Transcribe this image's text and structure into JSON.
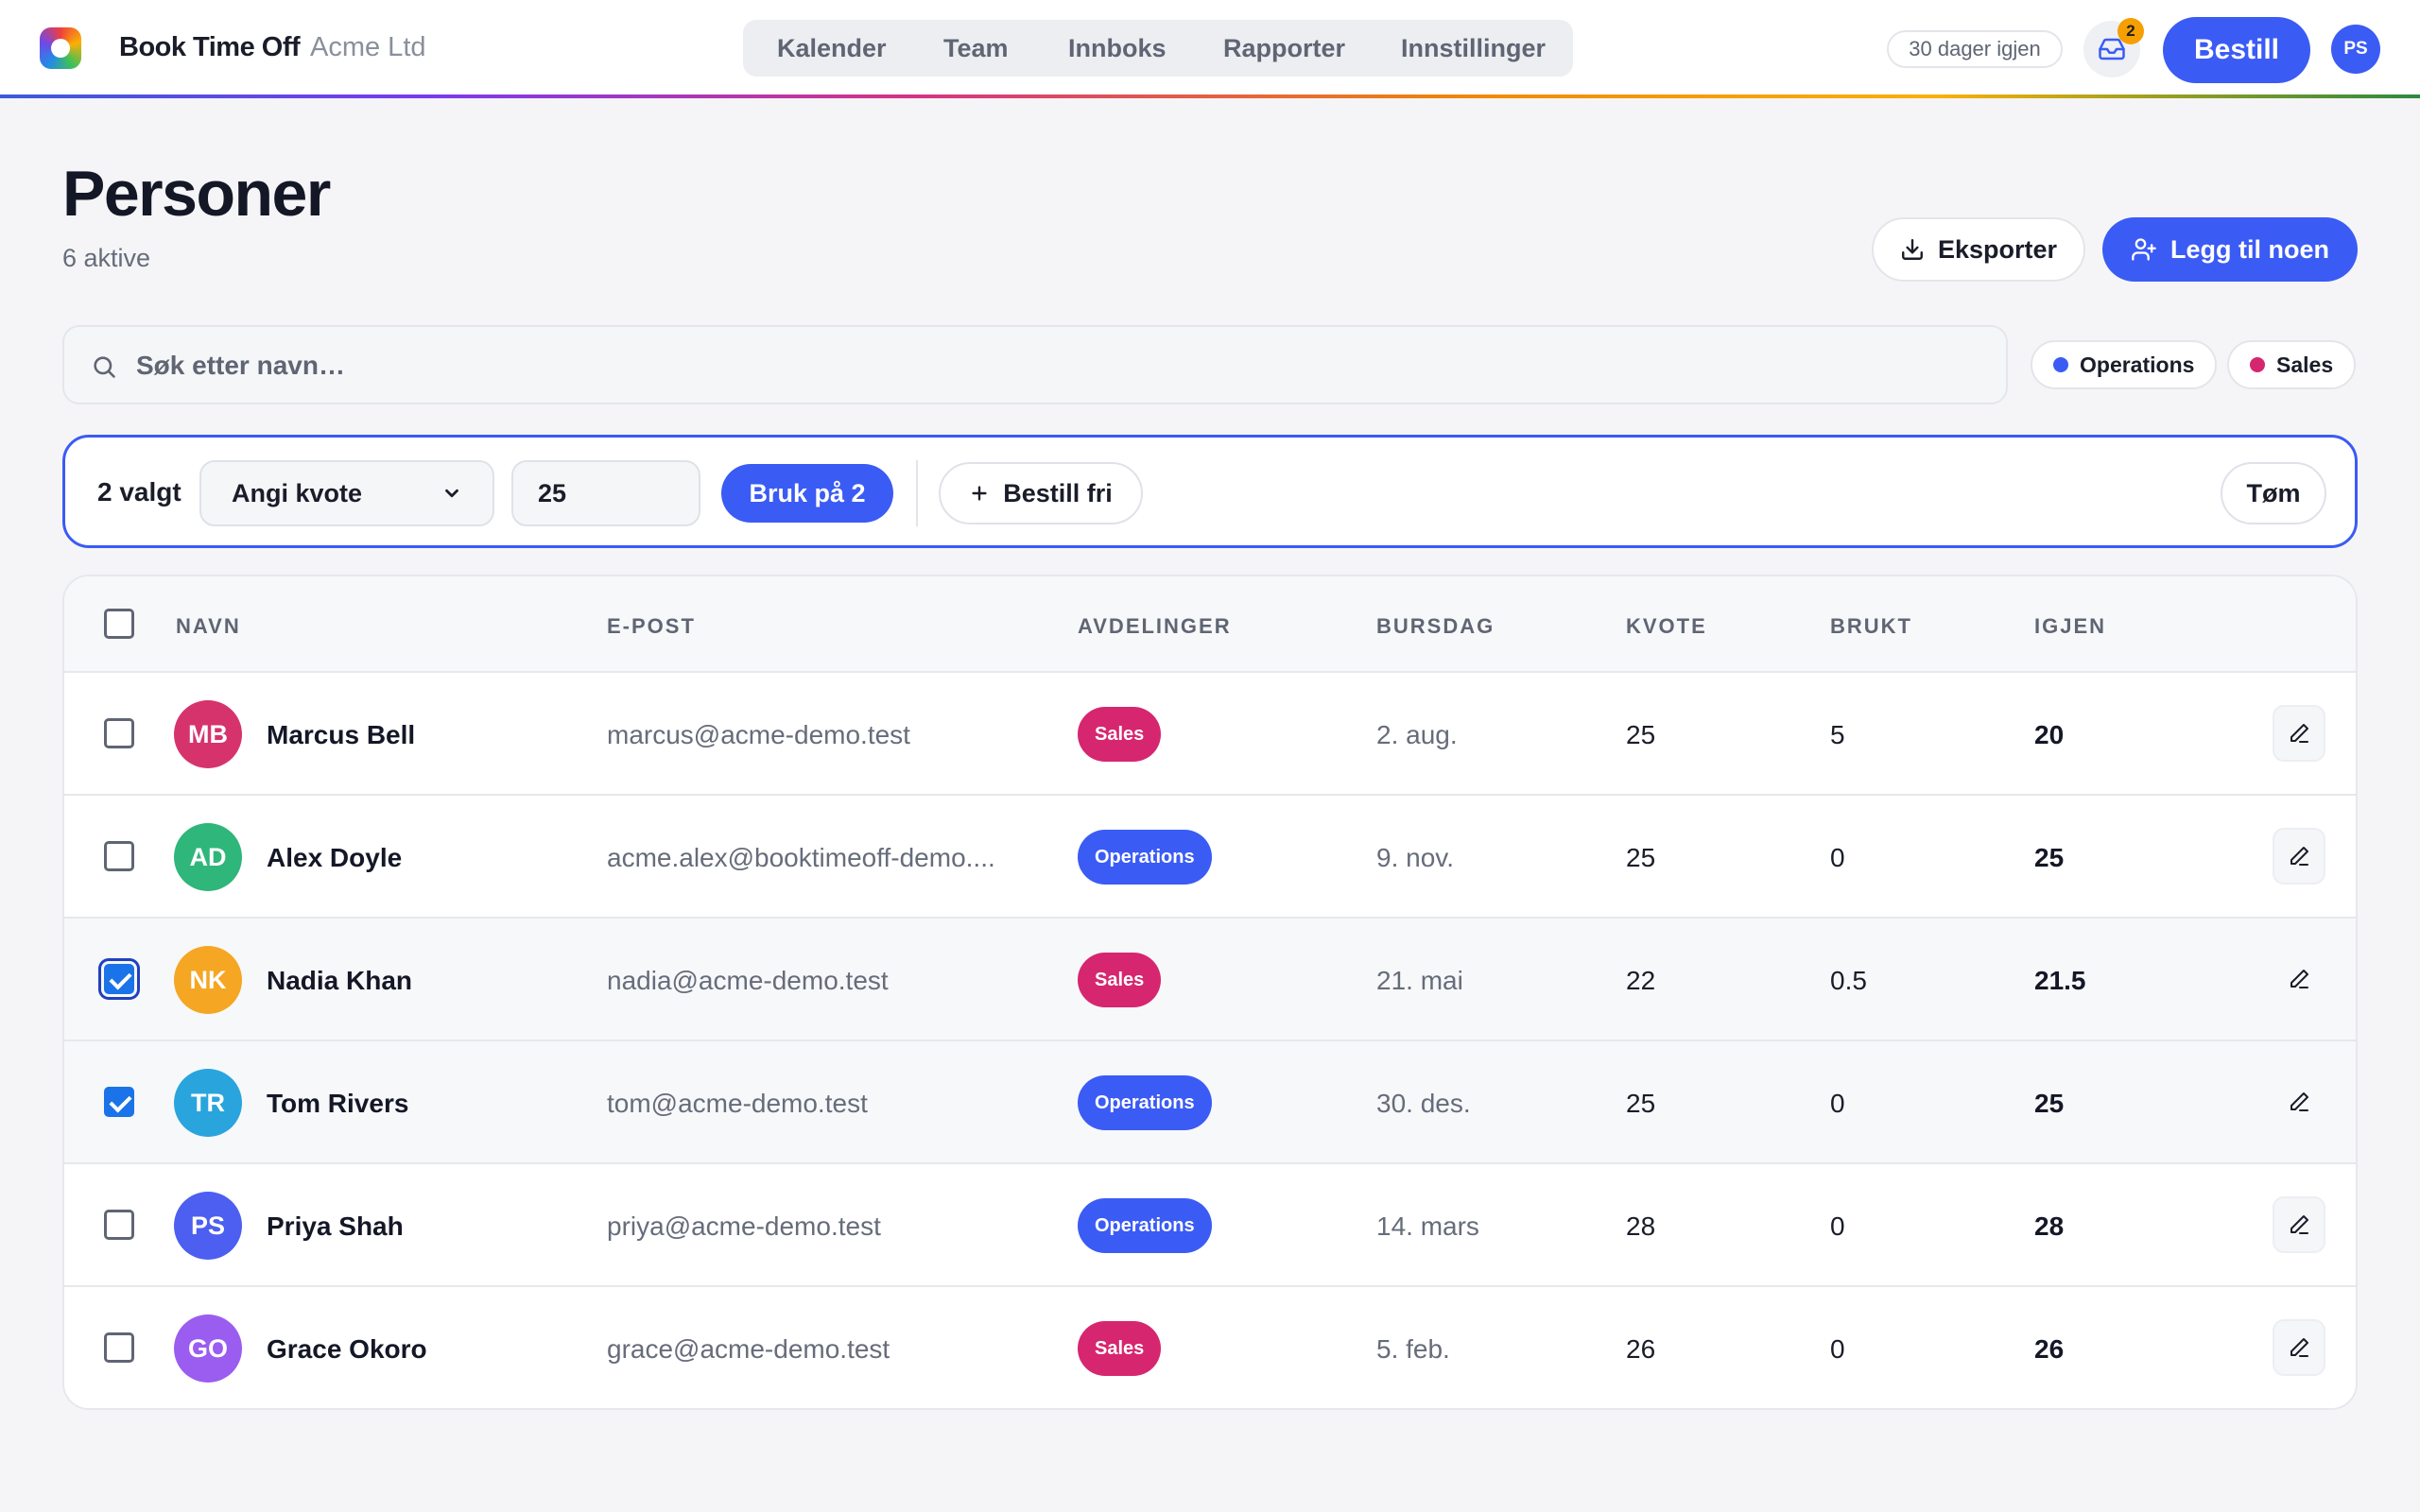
{
  "app": {
    "brand": "Book Time Off",
    "company": "Acme Ltd",
    "nav": [
      "Kalender",
      "Team",
      "Innboks",
      "Rapporter",
      "Innstillinger"
    ],
    "days_left": "30 dager igjen",
    "inbox_count": "2",
    "order_label": "Bestill",
    "user_initials": "PS"
  },
  "page": {
    "title": "Personer",
    "subtitle": "6 aktive",
    "export_label": "Eksporter",
    "add_label": "Legg til noen"
  },
  "search": {
    "placeholder": "Søk etter navn…",
    "value": ""
  },
  "filters": [
    {
      "label": "Operations",
      "color": "#3b5bf5"
    },
    {
      "label": "Sales",
      "color": "#d6266f"
    }
  ],
  "bulk": {
    "count_label": "2 valgt",
    "action": "Angi kvote",
    "value": "25",
    "apply_label": "Bruk på 2",
    "book_label": "Bestill fri",
    "clear_label": "Tøm"
  },
  "table": {
    "headers": [
      "NAVN",
      "E-POST",
      "AVDELINGER",
      "BURSDAG",
      "KVOTE",
      "BRUKT",
      "IGJEN"
    ],
    "rows": [
      {
        "initials": "MB",
        "name": "Marcus Bell",
        "email": "marcus@acme-demo.test",
        "dept": "Sales",
        "birthday": "2. aug.",
        "quota": "25",
        "used": "5",
        "left": "20",
        "checked": false,
        "avatar_color": "#d6336c"
      },
      {
        "initials": "AD",
        "name": "Alex Doyle",
        "email": "acme.alex@booktimeoff-demo....",
        "dept": "Operations",
        "birthday": "9. nov.",
        "quota": "25",
        "used": "0",
        "left": "25",
        "checked": false,
        "avatar_color": "#2fb67a"
      },
      {
        "initials": "NK",
        "name": "Nadia Khan",
        "email": "nadia@acme-demo.test",
        "dept": "Sales",
        "birthday": "21. mai",
        "quota": "22",
        "used": "0.5",
        "left": "21.5",
        "checked": true,
        "avatar_color": "#f5a623"
      },
      {
        "initials": "TR",
        "name": "Tom Rivers",
        "email": "tom@acme-demo.test",
        "dept": "Operations",
        "birthday": "30. des.",
        "quota": "25",
        "used": "0",
        "left": "25",
        "checked": true,
        "avatar_color": "#2aa4dd"
      },
      {
        "initials": "PS",
        "name": "Priya Shah",
        "email": "priya@acme-demo.test",
        "dept": "Operations",
        "birthday": "14. mars",
        "quota": "28",
        "used": "0",
        "left": "28",
        "checked": false,
        "avatar_color": "#4c5ff0"
      },
      {
        "initials": "GO",
        "name": "Grace Okoro",
        "email": "grace@acme-demo.test",
        "dept": "Sales",
        "birthday": "5. feb.",
        "quota": "26",
        "used": "0",
        "left": "26",
        "checked": false,
        "avatar_color": "#9b5cf0"
      }
    ]
  },
  "colors": {
    "accent": "#3b5bf5",
    "sales": "#d6266f",
    "operations": "#3b5bf5"
  }
}
